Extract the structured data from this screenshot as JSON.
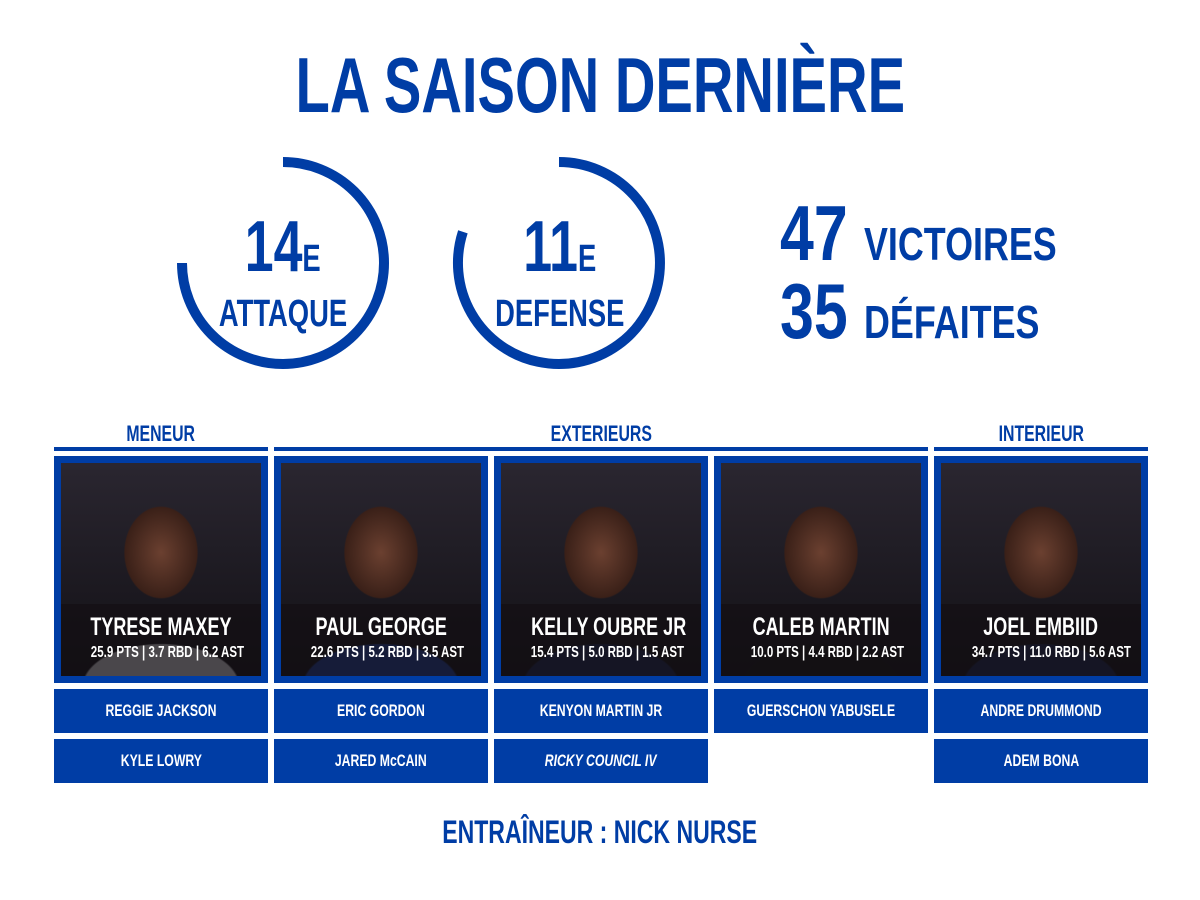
{
  "title": "LA SAISON DERNIÈRE",
  "colors": {
    "brand": "#003da5",
    "text_on_brand": "#ffffff"
  },
  "rankings": [
    {
      "rank": "14",
      "suffix": "E",
      "label": "ATTAQUE",
      "arc_fraction": 0.75
    },
    {
      "rank": "11",
      "suffix": "E",
      "label": "DEFENSE",
      "arc_fraction": 0.8
    }
  ],
  "record": {
    "wins": "47",
    "wins_label": "VICTOIRES",
    "losses": "35",
    "losses_label": "DÉFAITES"
  },
  "positions": [
    "MENEUR",
    "EXTERIEURS",
    "INTERIEUR"
  ],
  "starters": [
    {
      "name": "TYRESE MAXEY",
      "stats": "25.9 PTS | 3.7 RBD | 6.2 AST",
      "jersey": "#d8d8dc"
    },
    {
      "name": "PAUL GEORGE",
      "stats": "22.6 PTS | 5.2 RBD | 3.5 AST",
      "jersey": "#1f3f9a"
    },
    {
      "name": "KELLY OUBRE JR",
      "stats": "15.4 PTS | 5.0 RBD | 1.5 AST",
      "jersey": "#1c2750"
    },
    {
      "name": "CALEB MARTIN",
      "stats": "10.0 PTS | 4.4 RBD | 2.2 AST",
      "jersey": "#151515"
    },
    {
      "name": "JOEL EMBIID",
      "stats": "34.7 PTS | 11.0 RBD | 5.6 AST",
      "jersey": "#1c2750"
    }
  ],
  "bench": [
    [
      "REGGIE JACKSON",
      "KYLE LOWRY"
    ],
    [
      "ERIC GORDON",
      "JARED McCAIN"
    ],
    [
      "KENYON MARTIN JR",
      "RICKY COUNCIL IV"
    ],
    [
      "GUERSCHON YABUSELE"
    ],
    [
      "ANDRE DRUMMOND",
      "ADEM BONA"
    ]
  ],
  "coach": "ENTRAÎNEUR : NICK NURSE"
}
